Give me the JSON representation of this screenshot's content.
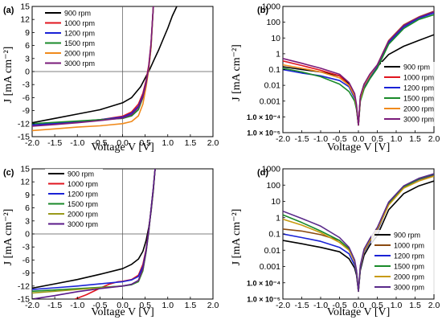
{
  "figure": {
    "axis_title_x": "Voltage V [V]",
    "axis_title_y": "J [mA cm⁻²]"
  },
  "chart_data": [
    {
      "panel": "(a)",
      "type": "line",
      "yscale": "linear",
      "xlim": [
        -2.0,
        2.0
      ],
      "ylim": [
        -15,
        15
      ],
      "xticks": [
        "-2.0",
        "-1.5",
        "-1.0",
        "-0.5",
        "0.0",
        "0.5",
        "1.0",
        "1.5",
        "2.0"
      ],
      "yticks": [
        "-15",
        "-12",
        "-9",
        "-6",
        "-3",
        "0",
        "3",
        "6",
        "9",
        "12",
        "15"
      ],
      "xlabel": "Voltage V [V]",
      "ylabel": "J [mA cm⁻²]",
      "legend_position": "top-left",
      "crosshair": true,
      "series": [
        {
          "name": "900 rpm",
          "color": "#000000",
          "x": [
            -2.0,
            -1.5,
            -1.0,
            -0.5,
            0.0,
            0.2,
            0.4,
            0.5,
            0.6,
            0.7,
            0.8,
            0.9,
            1.0,
            1.1,
            1.2
          ],
          "y": [
            -11.8,
            -10.8,
            -9.8,
            -8.8,
            -7.2,
            -6.0,
            -3.5,
            -1.5,
            0.5,
            2.8,
            5.0,
            7.5,
            10.0,
            12.8,
            15.0
          ]
        },
        {
          "name": "1000 rpm",
          "color": "#e0151f",
          "x": [
            -2.0,
            -1.5,
            -1.0,
            -0.5,
            0.0,
            0.2,
            0.35,
            0.45,
            0.52,
            0.58,
            0.63,
            0.68
          ],
          "y": [
            -12.5,
            -12.0,
            -11.6,
            -11.1,
            -10.3,
            -9.3,
            -7.5,
            -5.0,
            -2.0,
            1.5,
            6.5,
            15.0
          ]
        },
        {
          "name": "1200 rpm",
          "color": "#1a22d6",
          "x": [
            -2.0,
            -1.5,
            -1.0,
            -0.5,
            0.0,
            0.2,
            0.35,
            0.45,
            0.52,
            0.58,
            0.63,
            0.68
          ],
          "y": [
            -12.3,
            -11.9,
            -11.5,
            -11.1,
            -10.5,
            -9.6,
            -8.0,
            -5.5,
            -2.5,
            1.0,
            6.0,
            15.0
          ]
        },
        {
          "name": "1500 rpm",
          "color": "#1a8a2a",
          "x": [
            -2.0,
            -1.5,
            -1.0,
            -0.5,
            0.0,
            0.2,
            0.35,
            0.45,
            0.52,
            0.58,
            0.63,
            0.68
          ],
          "y": [
            -12.0,
            -11.7,
            -11.4,
            -11.1,
            -10.8,
            -10.2,
            -8.8,
            -6.0,
            -2.8,
            0.8,
            5.5,
            15.0
          ]
        },
        {
          "name": "2000 rpm",
          "color": "#f08a1c",
          "x": [
            -2.0,
            -1.5,
            -1.0,
            -0.5,
            0.0,
            0.2,
            0.35,
            0.45,
            0.52,
            0.58,
            0.63,
            0.68
          ],
          "y": [
            -13.6,
            -13.2,
            -12.8,
            -12.5,
            -12.0,
            -11.5,
            -10.2,
            -7.5,
            -3.5,
            0.5,
            5.5,
            15.0
          ]
        },
        {
          "name": "3000 rpm",
          "color": "#7a1a7a",
          "x": [
            -2.0,
            -1.5,
            -1.0,
            -0.5,
            0.0,
            0.2,
            0.35,
            0.45,
            0.52,
            0.58,
            0.63,
            0.68
          ],
          "y": [
            -12.6,
            -12.2,
            -11.8,
            -11.3,
            -10.7,
            -9.9,
            -8.3,
            -5.8,
            -2.7,
            1.0,
            6.2,
            15.0
          ]
        }
      ]
    },
    {
      "panel": "(b)",
      "type": "line",
      "yscale": "log",
      "xlim": [
        -2.0,
        2.0
      ],
      "ylim": [
        1e-05,
        1000
      ],
      "xticks": [
        "-2.0",
        "-1.5",
        "-1.0",
        "-0.5",
        "0.0",
        "0.5",
        "1.0",
        "1.5",
        "2.0"
      ],
      "yticks": [
        "1.0 × 10⁻⁵",
        "1.0 × 10⁻⁴",
        "0.001",
        "0.01",
        "0.1",
        "1",
        "10",
        "100",
        "1000"
      ],
      "xlabel": "Voltage V [V]",
      "ylabel": "J [mA cm⁻²]",
      "legend_position": "bottom-right",
      "series": [
        {
          "name": "900 rpm",
          "color": "#000000",
          "x": [
            -2.0,
            -1.5,
            -1.0,
            -0.5,
            -0.25,
            -0.1,
            -0.05,
            0.0,
            0.05,
            0.15,
            0.3,
            0.5,
            0.8,
            1.2,
            1.6,
            2.0
          ],
          "y": [
            0.15,
            0.1,
            0.07,
            0.04,
            0.012,
            0.002,
            0.0004,
            3e-05,
            0.002,
            0.012,
            0.04,
            0.15,
            0.9,
            3.0,
            7.0,
            16.0
          ]
        },
        {
          "name": "1000 rpm",
          "color": "#e0151f",
          "x": [
            -2.0,
            -1.5,
            -1.0,
            -0.5,
            -0.25,
            -0.1,
            -0.05,
            0.0,
            0.05,
            0.15,
            0.3,
            0.5,
            0.8,
            1.2,
            1.6,
            2.0
          ],
          "y": [
            0.35,
            0.18,
            0.09,
            0.04,
            0.01,
            0.0018,
            0.0004,
            3e-05,
            0.0015,
            0.01,
            0.04,
            0.18,
            6.0,
            60.0,
            200.0,
            450.0
          ]
        },
        {
          "name": "1200 rpm",
          "color": "#1a22d6",
          "x": [
            -2.0,
            -1.5,
            -1.0,
            -0.5,
            -0.25,
            -0.1,
            -0.05,
            0.0,
            0.05,
            0.15,
            0.3,
            0.5,
            0.8,
            1.2,
            1.6,
            2.0
          ],
          "y": [
            0.1,
            0.06,
            0.04,
            0.02,
            0.008,
            0.0015,
            0.0004,
            3e-05,
            0.0012,
            0.008,
            0.03,
            0.15,
            5.0,
            50.0,
            180.0,
            380.0
          ]
        },
        {
          "name": "1500 rpm",
          "color": "#1a8a2a",
          "x": [
            -2.0,
            -1.5,
            -1.0,
            -0.5,
            -0.25,
            -0.1,
            -0.05,
            0.0,
            0.05,
            0.15,
            0.3,
            0.5,
            0.8,
            1.2,
            1.6,
            2.0
          ],
          "y": [
            0.12,
            0.07,
            0.035,
            0.012,
            0.004,
            0.001,
            0.0003,
            3e-05,
            0.001,
            0.006,
            0.025,
            0.12,
            4.0,
            40.0,
            150.0,
            300.0
          ]
        },
        {
          "name": "2000 rpm",
          "color": "#f08a1c",
          "x": [
            -2.0,
            -1.5,
            -1.0,
            -0.5,
            -0.25,
            -0.1,
            -0.05,
            0.0,
            0.05,
            0.15,
            0.3,
            0.5,
            0.8,
            1.2,
            1.6,
            2.0
          ],
          "y": [
            0.2,
            0.12,
            0.07,
            0.03,
            0.01,
            0.002,
            0.0005,
            3e-05,
            0.0015,
            0.01,
            0.04,
            0.2,
            7.0,
            70.0,
            220.0,
            500.0
          ]
        },
        {
          "name": "3000 rpm",
          "color": "#7a1a7a",
          "x": [
            -2.0,
            -1.5,
            -1.0,
            -0.5,
            -0.25,
            -0.1,
            -0.05,
            0.0,
            0.05,
            0.15,
            0.3,
            0.5,
            0.8,
            1.2,
            1.6,
            2.0
          ],
          "y": [
            0.5,
            0.25,
            0.12,
            0.05,
            0.015,
            0.003,
            0.0006,
            3e-05,
            0.002,
            0.012,
            0.05,
            0.2,
            6.5,
            65.0,
            210.0,
            480.0
          ]
        }
      ]
    },
    {
      "panel": "(c)",
      "type": "line",
      "yscale": "linear",
      "xlim": [
        -2.0,
        2.0
      ],
      "ylim": [
        -15,
        15
      ],
      "xticks": [
        "-2.0",
        "-1.5",
        "-1.0",
        "-0.5",
        "0.0",
        "0.5",
        "1.0",
        "1.5",
        "2.0"
      ],
      "yticks": [
        "-15",
        "-12",
        "-9",
        "-6",
        "-3",
        "0",
        "3",
        "6",
        "9",
        "12",
        "15"
      ],
      "xlabel": "Voltage V [V]",
      "ylabel": "J [mA cm⁻²]",
      "legend_position": "top-left",
      "crosshair": true,
      "series": [
        {
          "name": "900 rpm",
          "color": "#000000",
          "x": [
            -2.0,
            -1.5,
            -1.0,
            -0.5,
            0.0,
            0.2,
            0.35,
            0.45,
            0.52,
            0.58,
            0.63,
            0.68,
            0.72
          ],
          "y": [
            -12.5,
            -11.5,
            -10.5,
            -9.3,
            -8.0,
            -7.0,
            -5.8,
            -4.0,
            -1.5,
            1.5,
            5.0,
            10.0,
            15.0
          ]
        },
        {
          "name": "1000 rpm",
          "color": "#e0151f",
          "x": [
            -1.05,
            -0.8,
            -0.5,
            -0.3,
            -0.1,
            0.0,
            0.2,
            0.35,
            0.45,
            0.52,
            0.58,
            0.63,
            0.68,
            0.72
          ],
          "y": [
            -15.0,
            -14.0,
            -12.5,
            -11.6,
            -11.0,
            -10.9,
            -10.5,
            -9.5,
            -7.0,
            -3.5,
            1.0,
            5.5,
            10.5,
            15.0
          ]
        },
        {
          "name": "1200 rpm",
          "color": "#1a22d6",
          "x": [
            -2.0,
            -1.5,
            -1.0,
            -0.5,
            0.0,
            0.2,
            0.35,
            0.45,
            0.52,
            0.58,
            0.63,
            0.68,
            0.72
          ],
          "y": [
            -12.8,
            -12.4,
            -12.0,
            -11.5,
            -11.0,
            -10.6,
            -9.8,
            -7.5,
            -3.8,
            0.8,
            5.5,
            10.5,
            15.0
          ]
        },
        {
          "name": "1500 rpm",
          "color": "#1a8a2a",
          "x": [
            -2.0,
            -1.5,
            -1.0,
            -0.5,
            0.0,
            0.2,
            0.35,
            0.45,
            0.52,
            0.58,
            0.63,
            0.68,
            0.72
          ],
          "y": [
            -13.2,
            -12.9,
            -12.6,
            -12.3,
            -12.0,
            -11.7,
            -11.0,
            -8.5,
            -4.2,
            0.5,
            5.5,
            10.5,
            15.0
          ]
        },
        {
          "name": "2000 rpm",
          "color": "#9a9a1a",
          "x": [
            -2.0,
            -1.5,
            -1.0,
            -0.5,
            0.0,
            0.2,
            0.35,
            0.45,
            0.52,
            0.58,
            0.63,
            0.68,
            0.72
          ],
          "y": [
            -13.6,
            -13.2,
            -12.8,
            -12.4,
            -12.0,
            -11.6,
            -10.8,
            -8.2,
            -4.0,
            0.6,
            5.5,
            10.5,
            15.0
          ]
        },
        {
          "name": "3000 rpm",
          "color": "#5a1a8a",
          "x": [
            -2.0,
            -1.5,
            -1.0,
            -0.5,
            0.0,
            0.2,
            0.35,
            0.45,
            0.52,
            0.58,
            0.63,
            0.68,
            0.72
          ],
          "y": [
            -15.0,
            -14.2,
            -13.3,
            -12.6,
            -12.0,
            -11.6,
            -10.7,
            -8.0,
            -3.9,
            0.7,
            5.6,
            10.6,
            15.0
          ]
        }
      ]
    },
    {
      "panel": "(d)",
      "type": "line",
      "yscale": "log",
      "xlim": [
        -2.0,
        2.0
      ],
      "ylim": [
        1e-05,
        1000
      ],
      "xticks": [
        "-2.0",
        "-1.5",
        "-1.0",
        "-0.5",
        "0.0",
        "0.5",
        "1.0",
        "1.5",
        "2.0"
      ],
      "yticks": [
        "1.0 × 10⁻⁵",
        "1.0 × 10⁻⁴",
        "0.001",
        "0.01",
        "0.1",
        "1",
        "10",
        "100",
        "1000"
      ],
      "xlabel": "Voltage V [V]",
      "ylabel": "J [mA cm⁻²]",
      "legend_position": "bottom-right",
      "series": [
        {
          "name": "900 rpm",
          "color": "#000000",
          "x": [
            -2.0,
            -1.5,
            -1.0,
            -0.5,
            -0.25,
            -0.1,
            -0.05,
            0.0,
            0.05,
            0.15,
            0.3,
            0.5,
            0.8,
            1.2,
            1.6,
            2.0
          ],
          "y": [
            0.04,
            0.025,
            0.015,
            0.008,
            0.003,
            0.0008,
            0.0003,
            3e-05,
            0.0006,
            0.005,
            0.02,
            0.08,
            3.0,
            30.0,
            90.0,
            180.0
          ]
        },
        {
          "name": "1000 rpm",
          "color": "#8a4a10",
          "x": [
            -2.0,
            -1.5,
            -1.0,
            -0.5,
            -0.25,
            -0.1,
            -0.05,
            0.0,
            0.05,
            0.15,
            0.3,
            0.5,
            0.8,
            1.2,
            1.6,
            2.0
          ],
          "y": [
            0.2,
            0.15,
            0.09,
            0.04,
            0.012,
            0.002,
            0.0005,
            3e-05,
            0.001,
            0.01,
            0.04,
            0.2,
            8.0,
            80.0,
            220.0,
            400.0
          ]
        },
        {
          "name": "1200 rpm",
          "color": "#1a22d6",
          "x": [
            -2.0,
            -1.5,
            -1.0,
            -0.5,
            -0.25,
            -0.1,
            -0.05,
            0.0,
            0.05,
            0.15,
            0.3,
            0.5,
            0.8,
            1.2,
            1.6,
            2.0
          ],
          "y": [
            0.1,
            0.06,
            0.035,
            0.015,
            0.006,
            0.0012,
            0.0004,
            3e-05,
            0.0008,
            0.008,
            0.03,
            0.15,
            7.0,
            75.0,
            230.0,
            450.0
          ]
        },
        {
          "name": "1500 rpm",
          "color": "#1a8a2a",
          "x": [
            -2.0,
            -1.5,
            -1.0,
            -0.5,
            -0.25,
            -0.1,
            -0.05,
            0.0,
            0.05,
            0.15,
            0.3,
            0.5,
            0.8,
            1.2,
            1.6,
            2.0
          ],
          "y": [
            1.5,
            0.5,
            0.15,
            0.04,
            0.012,
            0.002,
            0.0005,
            3e-05,
            0.001,
            0.01,
            0.04,
            0.2,
            7.0,
            75.0,
            240.0,
            480.0
          ]
        },
        {
          "name": "2000 rpm",
          "color": "#c89a10",
          "x": [
            -2.0,
            -1.5,
            -1.0,
            -0.5,
            -0.25,
            -0.1,
            -0.05,
            0.0,
            0.05,
            0.15,
            0.3,
            0.5,
            0.8,
            1.2,
            1.6,
            2.0
          ],
          "y": [
            0.8,
            0.35,
            0.12,
            0.03,
            0.01,
            0.002,
            0.0005,
            3e-05,
            0.001,
            0.009,
            0.035,
            0.18,
            6.0,
            65.0,
            180.0,
            350.0
          ]
        },
        {
          "name": "3000 rpm",
          "color": "#5a2a8a",
          "x": [
            -2.0,
            -1.5,
            -1.0,
            -0.5,
            -0.25,
            -0.1,
            -0.05,
            0.0,
            0.05,
            0.15,
            0.3,
            0.5,
            0.8,
            1.2,
            1.6,
            2.0
          ],
          "y": [
            2.5,
            0.9,
            0.3,
            0.06,
            0.015,
            0.0025,
            0.0006,
            3e-05,
            0.0012,
            0.012,
            0.05,
            0.25,
            9.0,
            90.0,
            260.0,
            500.0
          ]
        }
      ]
    }
  ]
}
